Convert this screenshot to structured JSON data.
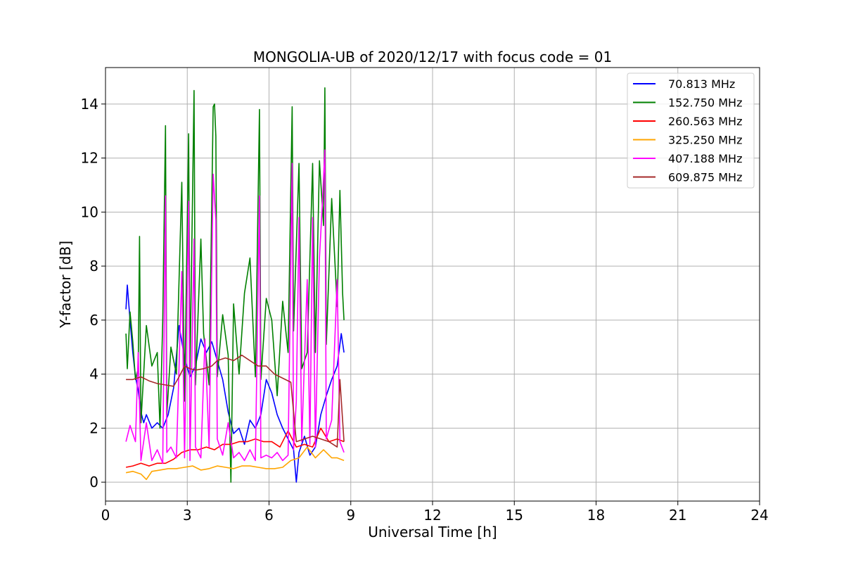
{
  "chart_data": {
    "type": "line",
    "title": "MONGOLIA-UB of 2020/12/17 with focus code = 01",
    "xlabel": "Universal Time [h]",
    "ylabel": "Y-factor [dB]",
    "xlim": [
      0,
      24
    ],
    "ylim": [
      -0.7,
      15.35
    ],
    "xticks": [
      0,
      3,
      6,
      9,
      12,
      15,
      18,
      21,
      24
    ],
    "yticks": [
      0,
      2,
      4,
      6,
      8,
      10,
      12,
      14
    ],
    "grid": true,
    "legend_position": "top-right",
    "series": [
      {
        "name": " 70.813 MHz",
        "color": "#0000ff",
        "points": [
          [
            0.75,
            6.4
          ],
          [
            0.8,
            7.3
          ],
          [
            0.9,
            6.0
          ],
          [
            1.0,
            4.8
          ],
          [
            1.1,
            3.9
          ],
          [
            1.2,
            3.4
          ],
          [
            1.3,
            2.6
          ],
          [
            1.4,
            2.2
          ],
          [
            1.5,
            2.5
          ],
          [
            1.7,
            2.0
          ],
          [
            1.9,
            2.2
          ],
          [
            2.1,
            2.0
          ],
          [
            2.3,
            2.5
          ],
          [
            2.5,
            3.5
          ],
          [
            2.7,
            5.8
          ],
          [
            2.9,
            4.6
          ],
          [
            3.1,
            3.9
          ],
          [
            3.3,
            4.3
          ],
          [
            3.5,
            5.3
          ],
          [
            3.7,
            4.8
          ],
          [
            3.9,
            5.2
          ],
          [
            4.1,
            4.5
          ],
          [
            4.3,
            3.8
          ],
          [
            4.5,
            2.6
          ],
          [
            4.7,
            1.8
          ],
          [
            4.9,
            2.0
          ],
          [
            5.1,
            1.4
          ],
          [
            5.3,
            2.3
          ],
          [
            5.5,
            2.0
          ],
          [
            5.7,
            2.5
          ],
          [
            5.9,
            3.8
          ],
          [
            6.1,
            3.3
          ],
          [
            6.3,
            2.5
          ],
          [
            6.5,
            2.0
          ],
          [
            6.7,
            1.6
          ],
          [
            6.9,
            1.2
          ],
          [
            7.0,
            0.0
          ],
          [
            7.1,
            1.1
          ],
          [
            7.3,
            1.7
          ],
          [
            7.5,
            1.0
          ],
          [
            7.7,
            1.3
          ],
          [
            7.9,
            2.5
          ],
          [
            8.1,
            3.2
          ],
          [
            8.3,
            3.8
          ],
          [
            8.5,
            4.3
          ],
          [
            8.65,
            5.5
          ],
          [
            8.75,
            4.8
          ]
        ]
      },
      {
        "name": "152.750 MHz",
        "color": "#008000",
        "points": [
          [
            0.75,
            5.5
          ],
          [
            0.8,
            4.2
          ],
          [
            0.9,
            6.3
          ],
          [
            1.0,
            5.2
          ],
          [
            1.1,
            3.8
          ],
          [
            1.2,
            4.2
          ],
          [
            1.25,
            9.1
          ],
          [
            1.3,
            2.2
          ],
          [
            1.5,
            5.8
          ],
          [
            1.7,
            4.3
          ],
          [
            1.9,
            4.8
          ],
          [
            2.0,
            2.0
          ],
          [
            2.1,
            6.0
          ],
          [
            2.2,
            13.2
          ],
          [
            2.25,
            2.5
          ],
          [
            2.4,
            5.0
          ],
          [
            2.6,
            4.0
          ],
          [
            2.8,
            11.1
          ],
          [
            2.9,
            3.0
          ],
          [
            3.05,
            12.9
          ],
          [
            3.1,
            4.0
          ],
          [
            3.25,
            14.5
          ],
          [
            3.3,
            3.6
          ],
          [
            3.5,
            9.0
          ],
          [
            3.6,
            5.5
          ],
          [
            3.8,
            3.6
          ],
          [
            3.95,
            13.9
          ],
          [
            4.0,
            14.0
          ],
          [
            4.05,
            12.8
          ],
          [
            4.1,
            3.9
          ],
          [
            4.3,
            6.2
          ],
          [
            4.5,
            4.7
          ],
          [
            4.6,
            0.0
          ],
          [
            4.7,
            6.6
          ],
          [
            4.9,
            4.0
          ],
          [
            5.1,
            7.0
          ],
          [
            5.3,
            8.3
          ],
          [
            5.5,
            3.9
          ],
          [
            5.65,
            13.8
          ],
          [
            5.7,
            3.8
          ],
          [
            5.9,
            6.8
          ],
          [
            6.1,
            6.0
          ],
          [
            6.3,
            3.2
          ],
          [
            6.5,
            6.7
          ],
          [
            6.7,
            4.8
          ],
          [
            6.85,
            13.9
          ],
          [
            6.9,
            5.6
          ],
          [
            7.1,
            11.8
          ],
          [
            7.2,
            4.2
          ],
          [
            7.4,
            4.8
          ],
          [
            7.6,
            11.8
          ],
          [
            7.7,
            4.8
          ],
          [
            7.85,
            11.9
          ],
          [
            8.0,
            9.5
          ],
          [
            8.05,
            14.6
          ],
          [
            8.1,
            5.1
          ],
          [
            8.3,
            10.5
          ],
          [
            8.5,
            6.5
          ],
          [
            8.6,
            10.8
          ],
          [
            8.7,
            7.0
          ],
          [
            8.75,
            6.0
          ]
        ]
      },
      {
        "name": "260.563 MHz",
        "color": "#ff0000",
        "points": [
          [
            0.75,
            0.55
          ],
          [
            1.0,
            0.6
          ],
          [
            1.3,
            0.7
          ],
          [
            1.6,
            0.6
          ],
          [
            1.9,
            0.7
          ],
          [
            2.2,
            0.7
          ],
          [
            2.5,
            0.85
          ],
          [
            2.8,
            1.1
          ],
          [
            3.1,
            1.2
          ],
          [
            3.4,
            1.2
          ],
          [
            3.7,
            1.3
          ],
          [
            4.0,
            1.2
          ],
          [
            4.3,
            1.4
          ],
          [
            4.6,
            1.4
          ],
          [
            4.9,
            1.5
          ],
          [
            5.2,
            1.5
          ],
          [
            5.5,
            1.6
          ],
          [
            5.8,
            1.5
          ],
          [
            6.1,
            1.5
          ],
          [
            6.4,
            1.3
          ],
          [
            6.7,
            1.9
          ],
          [
            7.0,
            1.3
          ],
          [
            7.3,
            1.4
          ],
          [
            7.6,
            1.3
          ],
          [
            7.9,
            2.0
          ],
          [
            8.2,
            1.5
          ],
          [
            8.5,
            1.6
          ],
          [
            8.75,
            1.5
          ]
        ]
      },
      {
        "name": "325.250 MHz",
        "color": "#ffa500",
        "points": [
          [
            0.75,
            0.35
          ],
          [
            1.0,
            0.4
          ],
          [
            1.3,
            0.3
          ],
          [
            1.5,
            0.1
          ],
          [
            1.7,
            0.4
          ],
          [
            2.0,
            0.45
          ],
          [
            2.3,
            0.5
          ],
          [
            2.6,
            0.5
          ],
          [
            2.9,
            0.55
          ],
          [
            3.2,
            0.6
          ],
          [
            3.5,
            0.45
          ],
          [
            3.8,
            0.5
          ],
          [
            4.1,
            0.6
          ],
          [
            4.4,
            0.55
          ],
          [
            4.7,
            0.5
          ],
          [
            5.0,
            0.6
          ],
          [
            5.3,
            0.6
          ],
          [
            5.6,
            0.55
          ],
          [
            5.9,
            0.5
          ],
          [
            6.2,
            0.5
          ],
          [
            6.5,
            0.55
          ],
          [
            6.8,
            0.8
          ],
          [
            7.1,
            0.9
          ],
          [
            7.4,
            1.3
          ],
          [
            7.7,
            0.9
          ],
          [
            8.0,
            1.2
          ],
          [
            8.3,
            0.9
          ],
          [
            8.5,
            0.9
          ],
          [
            8.75,
            0.8
          ]
        ]
      },
      {
        "name": "407.188 MHz",
        "color": "#ff00ff",
        "points": [
          [
            0.75,
            1.5
          ],
          [
            0.9,
            2.1
          ],
          [
            1.1,
            1.5
          ],
          [
            1.2,
            4.8
          ],
          [
            1.3,
            0.8
          ],
          [
            1.5,
            2.2
          ],
          [
            1.7,
            0.8
          ],
          [
            1.9,
            1.2
          ],
          [
            2.1,
            0.7
          ],
          [
            2.2,
            10.6
          ],
          [
            2.25,
            1.1
          ],
          [
            2.4,
            1.3
          ],
          [
            2.6,
            0.9
          ],
          [
            2.8,
            7.8
          ],
          [
            2.9,
            0.9
          ],
          [
            3.05,
            10.4
          ],
          [
            3.1,
            0.8
          ],
          [
            3.25,
            9.0
          ],
          [
            3.3,
            1.3
          ],
          [
            3.5,
            0.9
          ],
          [
            3.65,
            5.3
          ],
          [
            3.8,
            1.3
          ],
          [
            3.95,
            11.4
          ],
          [
            4.05,
            9.7
          ],
          [
            4.1,
            1.6
          ],
          [
            4.3,
            1.0
          ],
          [
            4.5,
            2.2
          ],
          [
            4.7,
            0.9
          ],
          [
            4.9,
            1.1
          ],
          [
            5.1,
            0.8
          ],
          [
            5.3,
            1.2
          ],
          [
            5.5,
            0.8
          ],
          [
            5.65,
            10.6
          ],
          [
            5.7,
            0.9
          ],
          [
            5.9,
            1.0
          ],
          [
            6.1,
            0.9
          ],
          [
            6.3,
            1.1
          ],
          [
            6.5,
            0.8
          ],
          [
            6.7,
            1.0
          ],
          [
            6.85,
            11.8
          ],
          [
            6.9,
            1.2
          ],
          [
            7.0,
            3.0
          ],
          [
            7.1,
            9.8
          ],
          [
            7.2,
            1.5
          ],
          [
            7.4,
            7.5
          ],
          [
            7.5,
            1.4
          ],
          [
            7.6,
            9.8
          ],
          [
            7.7,
            1.3
          ],
          [
            7.85,
            8.3
          ],
          [
            7.95,
            10.2
          ],
          [
            8.05,
            12.3
          ],
          [
            8.1,
            1.6
          ],
          [
            8.3,
            2.3
          ],
          [
            8.5,
            7.5
          ],
          [
            8.6,
            1.5
          ],
          [
            8.75,
            1.1
          ]
        ]
      },
      {
        "name": "609.875 MHz",
        "color": "#a52a2a",
        "points": [
          [
            0.75,
            3.8
          ],
          [
            1.0,
            3.8
          ],
          [
            1.3,
            3.9
          ],
          [
            1.6,
            3.75
          ],
          [
            1.9,
            3.65
          ],
          [
            2.2,
            3.6
          ],
          [
            2.5,
            3.55
          ],
          [
            2.7,
            3.9
          ],
          [
            2.9,
            4.3
          ],
          [
            3.1,
            4.2
          ],
          [
            3.3,
            4.15
          ],
          [
            3.6,
            4.2
          ],
          [
            3.9,
            4.3
          ],
          [
            4.1,
            4.5
          ],
          [
            4.4,
            4.6
          ],
          [
            4.7,
            4.5
          ],
          [
            5.0,
            4.7
          ],
          [
            5.3,
            4.5
          ],
          [
            5.6,
            4.3
          ],
          [
            5.9,
            4.3
          ],
          [
            6.2,
            4.0
          ],
          [
            6.5,
            3.85
          ],
          [
            6.8,
            3.7
          ],
          [
            7.0,
            1.5
          ],
          [
            7.3,
            1.6
          ],
          [
            7.6,
            1.7
          ],
          [
            7.9,
            1.6
          ],
          [
            8.2,
            1.5
          ],
          [
            8.5,
            1.3
          ],
          [
            8.6,
            3.8
          ],
          [
            8.75,
            1.5
          ]
        ]
      }
    ]
  }
}
